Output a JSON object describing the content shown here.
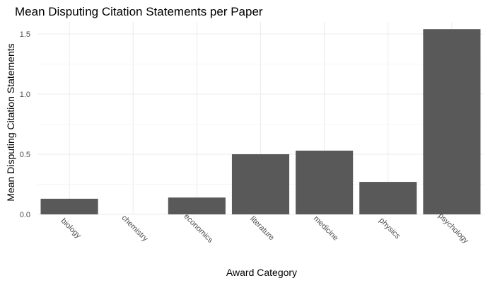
{
  "chart_data": {
    "type": "bar",
    "title": "Mean Disputing Citation Statements per Paper",
    "xlabel": "Award Category",
    "ylabel": "Mean Disputing Citation Statements",
    "categories": [
      "biology",
      "chemistry",
      "economics",
      "literature",
      "medicine",
      "physics",
      "psychology"
    ],
    "values": [
      0.13,
      0.0,
      0.14,
      0.5,
      0.53,
      0.27,
      1.54
    ],
    "ylim": [
      0,
      1.6
    ],
    "yticks": [
      0.0,
      0.5,
      1.0,
      1.5
    ],
    "ytick_labels": [
      "0.0",
      "0.5",
      "1.0",
      "1.5"
    ],
    "grid": true,
    "legend": "none",
    "colors": {
      "bar": "#595959",
      "grid": "#ebebeb",
      "text": "#4d4d4d"
    }
  }
}
